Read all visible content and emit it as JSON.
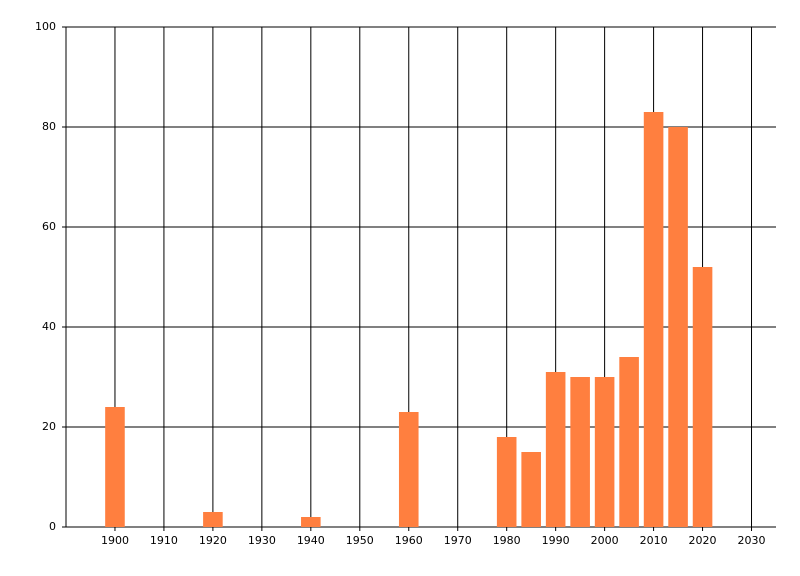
{
  "chart_data": {
    "type": "bar",
    "x": [
      1900,
      1920,
      1940,
      1960,
      1980,
      1985,
      1990,
      1995,
      2000,
      2005,
      2010,
      2015,
      2020
    ],
    "values": [
      24,
      3,
      2,
      23,
      18,
      15,
      31,
      30,
      30,
      34,
      83,
      80,
      52
    ],
    "color": "#ff7f3f",
    "xlim": [
      1890,
      2035
    ],
    "xticks": [
      1900,
      1910,
      1920,
      1930,
      1940,
      1950,
      1960,
      1970,
      1980,
      1990,
      2000,
      2010,
      2020,
      2030
    ],
    "ylim": [
      0,
      100
    ],
    "yticks": [
      0,
      20,
      40,
      60,
      80,
      100
    ],
    "grid": true
  }
}
